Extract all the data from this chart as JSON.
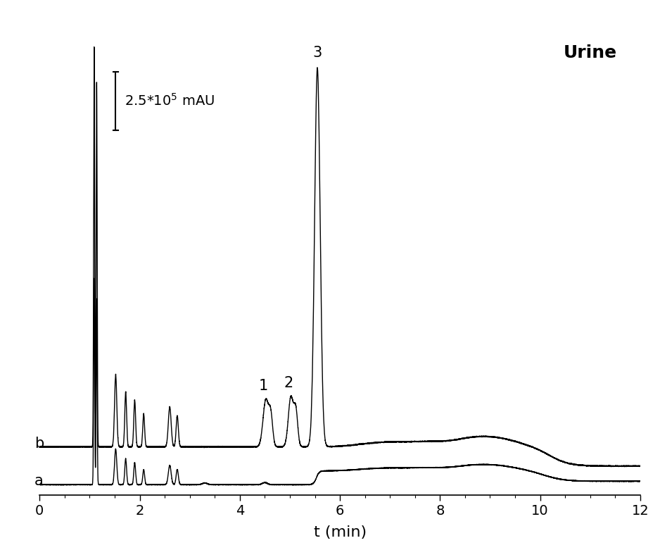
{
  "title": "Urine",
  "xlabel": "t (min)",
  "xlim": [
    0,
    12
  ],
  "ylim": [
    -0.15,
    6.8
  ],
  "background_color": "#ffffff",
  "line_color": "#000000",
  "label_a": "a",
  "label_b": "b",
  "xticks": [
    0,
    2,
    4,
    6,
    8,
    10,
    12
  ],
  "scale_bar_x": 1.52,
  "scale_bar_height": 0.85,
  "scale_bar_text": "2.5*10$^5$ mAU",
  "title_fontsize": 18,
  "label_fontsize": 15,
  "tick_fontsize": 14,
  "xlabel_fontsize": 16
}
